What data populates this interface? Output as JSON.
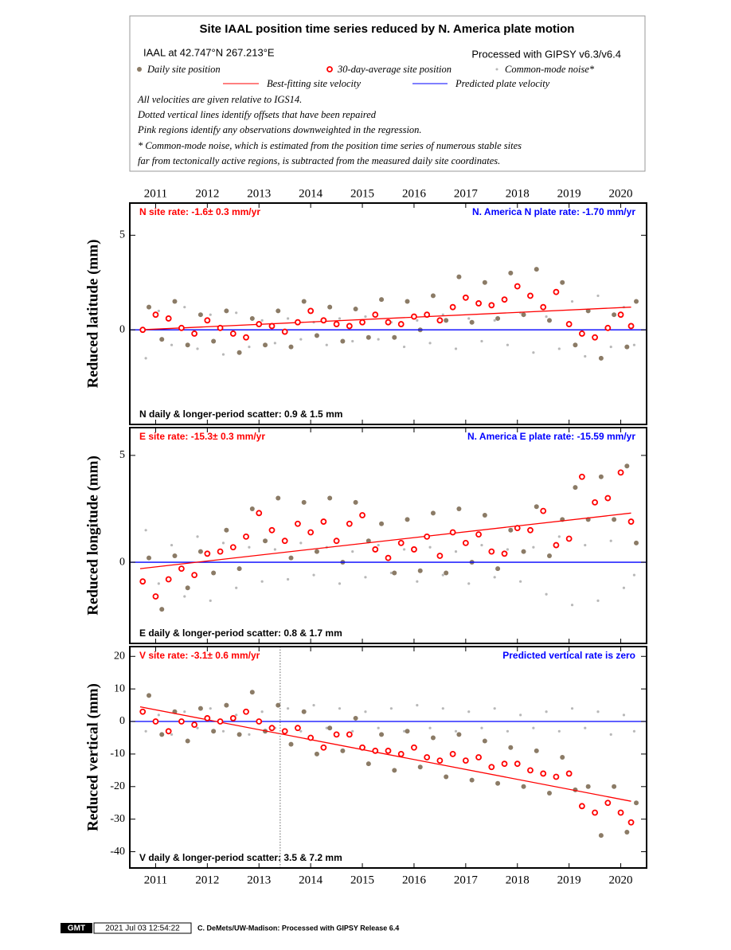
{
  "header": {
    "title": "Site IAAL position time series reduced by N. America plate motion",
    "site": "IAAL at 42.747°N 267.213°E",
    "processing": "Processed with GIPSY v6.3/v6.4",
    "legend": [
      "Daily site position",
      "30-day-average site position",
      "Common-mode noise*",
      "Best-fitting site velocity",
      "Predicted plate velocity"
    ],
    "notes": [
      "All velocities are given relative to IGS14.",
      "Dotted vertical lines identify offsets that have been repaired",
      "Pink regions identify any observations downweighted in the regression.",
      "* Common-mode noise, which is estimated from the position time series of numerous stable sites",
      "far from tectonically active regions, is subtracted from the measured daily site coordinates."
    ]
  },
  "chart_data": [
    {
      "type": "scatter",
      "ylabel": "Reduced latitude (mm)",
      "rate_text": "N site rate:  -1.6± 0.3 mm/yr",
      "plate_text": "N. America N plate rate: -1.70 mm/yr",
      "scatter_text": "N daily & longer-period scatter:   0.9 &   1.5 mm",
      "xlim": [
        2010.5,
        2020.5
      ],
      "xticks": [
        2011,
        2012,
        2013,
        2014,
        2015,
        2016,
        2017,
        2018,
        2019,
        2020
      ],
      "ylim": [
        -5,
        6.7
      ],
      "yticks": [
        0,
        5
      ],
      "noise": {
        "color": "#b8b8b8",
        "x": [
          2010.81,
          2011.06,
          2011.31,
          2011.56,
          2011.81,
          2012.06,
          2012.31,
          2012.56,
          2012.81,
          2013.06,
          2013.31,
          2013.56,
          2013.81,
          2014.06,
          2014.31,
          2014.56,
          2014.81,
          2015.06,
          2015.31,
          2015.56,
          2015.81,
          2016.06,
          2016.31,
          2016.56,
          2016.81,
          2017.06,
          2017.31,
          2017.56,
          2017.81,
          2018.06,
          2018.31,
          2018.56,
          2018.81,
          2019.06,
          2019.31,
          2019.56,
          2019.81,
          2020.06,
          2020.26
        ],
        "values": [
          -1.5,
          1.0,
          -0.8,
          1.2,
          -1.0,
          0.8,
          -1.3,
          0.9,
          -0.9,
          0.5,
          -0.7,
          0.6,
          -0.5,
          0.4,
          -0.8,
          0.6,
          -0.6,
          0.7,
          -0.5,
          0.4,
          -0.9,
          0.5,
          -0.7,
          0.8,
          -1.0,
          0.6,
          -0.6,
          0.5,
          -0.8,
          0.9,
          -1.2,
          0.7,
          -1.0,
          1.5,
          -1.4,
          1.8,
          -0.9,
          1.2,
          -0.8
        ]
      },
      "daily": {
        "color": "#8b7b66",
        "x": [
          2010.87,
          2011.12,
          2011.37,
          2011.62,
          2011.87,
          2012.12,
          2012.37,
          2012.62,
          2012.87,
          2013.12,
          2013.37,
          2013.62,
          2013.87,
          2014.12,
          2014.37,
          2014.62,
          2014.87,
          2015.12,
          2015.37,
          2015.62,
          2015.87,
          2016.12,
          2016.37,
          2016.62,
          2016.87,
          2017.12,
          2017.37,
          2017.62,
          2017.87,
          2018.12,
          2018.37,
          2018.62,
          2018.87,
          2019.12,
          2019.37,
          2019.62,
          2019.87,
          2020.12,
          2020.3
        ],
        "values": [
          1.2,
          -0.5,
          1.5,
          -0.8,
          0.8,
          -0.6,
          1.0,
          -1.2,
          0.6,
          -0.8,
          1.0,
          -0.9,
          1.5,
          -0.3,
          1.2,
          -0.6,
          1.1,
          -0.4,
          1.6,
          -0.4,
          1.5,
          0.0,
          1.8,
          0.5,
          2.8,
          0.4,
          2.5,
          0.6,
          3.0,
          0.8,
          3.2,
          0.5,
          2.5,
          -0.8,
          1.0,
          -1.5,
          0.8,
          -0.9,
          1.5
        ]
      },
      "average": {
        "color": "#ff0000",
        "x": [
          2010.75,
          2011,
          2011.25,
          2011.5,
          2011.75,
          2012,
          2012.25,
          2012.5,
          2012.75,
          2013,
          2013.25,
          2013.5,
          2013.75,
          2014,
          2014.25,
          2014.5,
          2014.75,
          2015,
          2015.25,
          2015.5,
          2015.75,
          2016,
          2016.25,
          2016.5,
          2016.75,
          2017,
          2017.25,
          2017.5,
          2017.75,
          2018,
          2018.25,
          2018.5,
          2018.75,
          2019,
          2019.25,
          2019.5,
          2019.75,
          2020,
          2020.2
        ],
        "values": [
          0.0,
          0.8,
          0.6,
          0.1,
          -0.2,
          0.5,
          0.1,
          -0.2,
          -0.4,
          0.3,
          0.2,
          -0.1,
          0.4,
          1.0,
          0.5,
          0.3,
          0.2,
          0.4,
          0.8,
          0.4,
          0.3,
          0.7,
          0.8,
          0.5,
          1.2,
          1.7,
          1.4,
          1.3,
          1.6,
          2.3,
          1.8,
          1.2,
          2.0,
          0.3,
          -0.2,
          -0.4,
          0.1,
          0.8,
          0.2
        ]
      },
      "fit": {
        "color": "#ff0000",
        "x": [
          2010.7,
          2020.2
        ],
        "values": [
          0,
          1.2
        ]
      },
      "plate": {
        "color": "#0000ff",
        "x": [
          2010.5,
          2020.5
        ],
        "values": [
          0,
          0
        ]
      }
    },
    {
      "type": "scatter",
      "ylabel": "Reduced longitude (mm)",
      "rate_text": "E site rate:  -15.3± 0.3 mm/yr",
      "plate_text": "N. America E plate rate: -15.59 mm/yr",
      "scatter_text": "E daily & longer-period scatter:   0.8 &   1.7 mm",
      "xlim": [
        2010.5,
        2020.5
      ],
      "xticks": [
        2011,
        2012,
        2013,
        2014,
        2015,
        2016,
        2017,
        2018,
        2019,
        2020
      ],
      "ylim": [
        -3.8,
        6.3
      ],
      "yticks": [
        0,
        5
      ],
      "noise": {
        "color": "#b8b8b8",
        "x": [
          2010.81,
          2011.06,
          2011.31,
          2011.56,
          2011.81,
          2012.06,
          2012.31,
          2012.56,
          2012.81,
          2013.06,
          2013.31,
          2013.56,
          2013.81,
          2014.06,
          2014.31,
          2014.56,
          2014.81,
          2015.06,
          2015.31,
          2015.56,
          2015.81,
          2016.06,
          2016.31,
          2016.56,
          2016.81,
          2017.06,
          2017.31,
          2017.56,
          2017.81,
          2018.06,
          2018.31,
          2018.56,
          2018.81,
          2019.06,
          2019.31,
          2019.56,
          2019.81,
          2020.06,
          2020.26
        ],
        "values": [
          1.5,
          -1.0,
          0.8,
          -1.6,
          1.2,
          -1.8,
          0.9,
          -1.2,
          0.7,
          -0.9,
          0.6,
          -0.8,
          0.9,
          -0.6,
          0.7,
          -1.0,
          0.5,
          -0.7,
          0.8,
          -0.5,
          0.6,
          -0.9,
          0.7,
          -0.6,
          0.5,
          -1.0,
          0.8,
          -0.7,
          0.6,
          -0.9,
          0.7,
          -1.5,
          1.2,
          -2.0,
          0.8,
          -1.8,
          1.0,
          -1.2,
          -0.6
        ]
      },
      "daily": {
        "color": "#8b7b66",
        "x": [
          2010.87,
          2011.12,
          2011.37,
          2011.62,
          2011.87,
          2012.12,
          2012.37,
          2012.62,
          2012.87,
          2013.12,
          2013.37,
          2013.62,
          2013.87,
          2014.12,
          2014.37,
          2014.62,
          2014.87,
          2015.12,
          2015.37,
          2015.62,
          2015.87,
          2016.12,
          2016.37,
          2016.62,
          2016.87,
          2017.12,
          2017.37,
          2017.62,
          2017.87,
          2018.12,
          2018.37,
          2018.62,
          2018.87,
          2019.12,
          2019.37,
          2019.62,
          2019.87,
          2020.12,
          2020.3
        ],
        "values": [
          0.2,
          -2.2,
          0.3,
          -1.2,
          0.5,
          -0.5,
          1.5,
          -0.3,
          2.5,
          1.0,
          3.0,
          0.2,
          2.8,
          0.5,
          3.0,
          0.0,
          2.8,
          1.0,
          1.8,
          -0.5,
          2.0,
          -0.4,
          2.3,
          -0.5,
          2.5,
          0.0,
          2.2,
          -0.3,
          1.5,
          0.5,
          2.6,
          0.3,
          2.0,
          3.5,
          2.0,
          4.0,
          2.0,
          4.5,
          0.9
        ]
      },
      "average": {
        "color": "#ff0000",
        "x": [
          2010.75,
          2011,
          2011.25,
          2011.5,
          2011.75,
          2012,
          2012.25,
          2012.5,
          2012.75,
          2013,
          2013.25,
          2013.5,
          2013.75,
          2014,
          2014.25,
          2014.5,
          2014.75,
          2015,
          2015.25,
          2015.5,
          2015.75,
          2016,
          2016.25,
          2016.5,
          2016.75,
          2017,
          2017.25,
          2017.5,
          2017.75,
          2018,
          2018.25,
          2018.5,
          2018.75,
          2019,
          2019.25,
          2019.5,
          2019.75,
          2020,
          2020.2
        ],
        "values": [
          -0.9,
          -1.6,
          -0.8,
          -0.3,
          -0.6,
          0.4,
          0.5,
          0.7,
          1.2,
          2.3,
          1.5,
          1.0,
          1.8,
          1.4,
          1.9,
          1.0,
          1.8,
          2.2,
          0.6,
          0.2,
          0.9,
          0.6,
          1.2,
          0.3,
          1.4,
          0.9,
          1.3,
          0.5,
          0.4,
          1.6,
          1.5,
          2.4,
          0.8,
          1.1,
          4.0,
          2.8,
          3.0,
          4.2,
          1.9
        ]
      },
      "fit": {
        "color": "#ff0000",
        "x": [
          2010.7,
          2020.2
        ],
        "values": [
          -0.3,
          2.3
        ]
      },
      "plate": {
        "color": "#0000ff",
        "x": [
          2010.5,
          2020.5
        ],
        "values": [
          0,
          0
        ]
      }
    },
    {
      "type": "scatter",
      "ylabel": "Reduced vertical (mm)",
      "rate_text": "V site rate:  -3.1± 0.6 mm/yr",
      "plate_text": "Predicted vertical rate is zero",
      "scatter_text": "V daily & longer-period scatter:   3.5 &   7.2 mm",
      "xlim": [
        2010.5,
        2020.5
      ],
      "xticks": [
        2011,
        2012,
        2013,
        2014,
        2015,
        2016,
        2017,
        2018,
        2019,
        2020
      ],
      "ylim": [
        -45,
        23
      ],
      "yticks": [
        -40,
        -30,
        -20,
        -10,
        0,
        10,
        20
      ],
      "offsets": [
        2013.41
      ],
      "noise": {
        "color": "#b8b8b8",
        "x": [
          2010.81,
          2011.06,
          2011.31,
          2011.56,
          2011.81,
          2012.06,
          2012.31,
          2012.56,
          2012.81,
          2013.06,
          2013.31,
          2013.56,
          2013.81,
          2014.06,
          2014.31,
          2014.56,
          2014.81,
          2015.06,
          2015.31,
          2015.56,
          2015.81,
          2016.06,
          2016.31,
          2016.56,
          2016.81,
          2017.06,
          2017.31,
          2017.56,
          2017.81,
          2018.06,
          2018.31,
          2018.56,
          2018.81,
          2019.06,
          2019.31,
          2019.56,
          2019.81,
          2020.06,
          2020.26
        ],
        "values": [
          -3,
          2,
          -4,
          3,
          -2,
          4,
          -3,
          2,
          -4,
          3,
          -2,
          4,
          -3,
          5,
          -2,
          4,
          -3,
          3,
          -2,
          4,
          -3,
          5,
          -2,
          4,
          -3,
          3,
          -2,
          4,
          -3,
          2,
          -2,
          3,
          -3,
          4,
          -2,
          3,
          -4,
          2,
          -3
        ]
      },
      "daily": {
        "color": "#8b7b66",
        "x": [
          2010.87,
          2011.12,
          2011.37,
          2011.62,
          2011.87,
          2012.12,
          2012.37,
          2012.62,
          2012.87,
          2013.12,
          2013.37,
          2013.62,
          2013.87,
          2014.12,
          2014.37,
          2014.62,
          2014.87,
          2015.12,
          2015.37,
          2015.62,
          2015.87,
          2016.12,
          2016.37,
          2016.62,
          2016.87,
          2017.12,
          2017.37,
          2017.62,
          2017.87,
          2018.12,
          2018.37,
          2018.62,
          2018.87,
          2019.12,
          2019.37,
          2019.62,
          2019.87,
          2020.12,
          2020.3
        ],
        "values": [
          8,
          -4,
          3,
          -6,
          4,
          -3,
          5,
          -4,
          9,
          -3,
          5,
          -7,
          3,
          -10,
          -2,
          -9,
          1,
          -13,
          -4,
          -15,
          -3,
          -14,
          -5,
          -17,
          -4,
          -18,
          -6,
          -19,
          -8,
          -20,
          -9,
          -22,
          -11,
          -21,
          -20,
          -35,
          -20,
          -34,
          -25
        ]
      },
      "average": {
        "color": "#ff0000",
        "x": [
          2010.75,
          2011,
          2011.25,
          2011.5,
          2011.75,
          2012,
          2012.25,
          2012.5,
          2012.75,
          2013,
          2013.25,
          2013.5,
          2013.75,
          2014,
          2014.25,
          2014.5,
          2014.75,
          2015,
          2015.25,
          2015.5,
          2015.75,
          2016,
          2016.25,
          2016.5,
          2016.75,
          2017,
          2017.25,
          2017.5,
          2017.75,
          2018,
          2018.25,
          2018.5,
          2018.75,
          2019,
          2019.25,
          2019.5,
          2019.75,
          2020,
          2020.2
        ],
        "values": [
          3,
          0,
          -3,
          0,
          -1,
          1,
          0,
          1,
          3,
          0,
          -2,
          -3,
          -2,
          -5,
          -8,
          -4,
          -4,
          -8,
          -9,
          -9,
          -10,
          -8,
          -11,
          -12,
          -10,
          -12,
          -11,
          -14,
          -13,
          -13,
          -15,
          -16,
          -17,
          -16,
          -26,
          -28,
          -25,
          -28,
          -31
        ]
      },
      "fit": {
        "color": "#ff0000",
        "x": [
          2010.7,
          2020.2
        ],
        "values": [
          4.5,
          -24.5
        ]
      },
      "plate": {
        "color": "#0000ff",
        "x": [
          2010.5,
          2020.5
        ],
        "values": [
          0,
          0
        ]
      }
    }
  ],
  "footer": {
    "logo": "GMT",
    "timestamp": "2021 Jul 03 12:54:22",
    "credit": "C. DeMets/UW-Madison: Processed with GIPSY Release 6.4"
  }
}
